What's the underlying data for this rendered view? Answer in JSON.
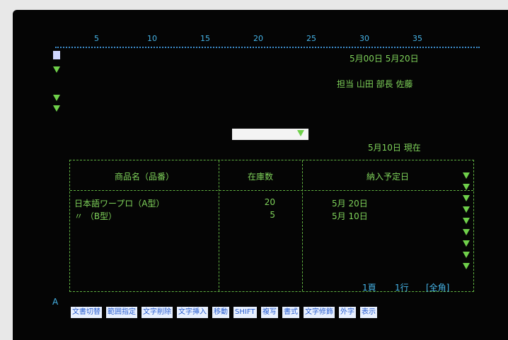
{
  "ruler": {
    "labels": [
      "5",
      "10",
      "15",
      "20",
      "25",
      "30",
      "35"
    ]
  },
  "header": {
    "dates": "5月00日 5月20日",
    "signers": "担当 山田 部長 佐藤",
    "as_of": "5月10日 現在"
  },
  "table": {
    "headers": [
      "商品名（品番）",
      "在庫数",
      "納入予定日"
    ],
    "rows": [
      [
        "日本語ワープロ（A型）",
        "20",
        "5月 20日"
      ],
      [
        "〃 （B型）",
        "5",
        "5月 10日"
      ]
    ]
  },
  "status": {
    "page": "1頁",
    "line": "1行",
    "mode": "[全角]"
  },
  "keys": {
    "prefix": "A",
    "items": [
      "文書切替",
      "範囲指定",
      "文字削除",
      "文字挿入",
      "移動",
      "SHIFT",
      "複写",
      "書式",
      "文字修飾",
      "外字",
      "表示"
    ]
  }
}
